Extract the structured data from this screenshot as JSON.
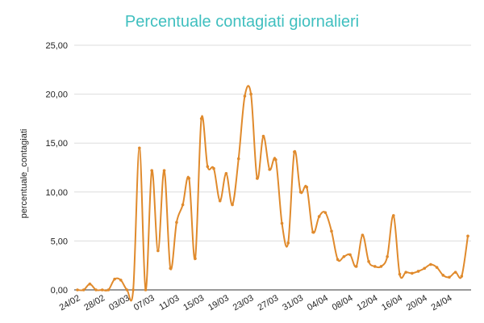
{
  "chart_data": {
    "type": "line",
    "title": "Percentuale contagiati giornalieri",
    "xlabel": "",
    "ylabel": "percentuale_contagiati",
    "ylim": [
      0,
      25
    ],
    "yticks": [
      "0,00",
      "5,00",
      "10,00",
      "15,00",
      "20,00",
      "25,00"
    ],
    "xtick_labels": [
      "24/02",
      "28/02",
      "03/03",
      "07/03",
      "11/03",
      "15/03",
      "19/03",
      "23/03",
      "27/03",
      "31/03",
      "04/04",
      "08/04",
      "12/04",
      "16/04",
      "20/04",
      "24/04"
    ],
    "grid": "horizontal",
    "legend": "none",
    "line_color": "#e08a2c",
    "grid_color": "#dddddd",
    "title_color": "#3fbfbf",
    "x": [
      "24/02",
      "25/02",
      "26/02",
      "27/02",
      "28/02",
      "29/02",
      "01/03",
      "02/03",
      "03/03",
      "04/03",
      "05/03",
      "06/03",
      "07/03",
      "08/03",
      "09/03",
      "10/03",
      "11/03",
      "12/03",
      "13/03",
      "14/03",
      "15/03",
      "16/03",
      "17/03",
      "18/03",
      "19/03",
      "20/03",
      "21/03",
      "22/03",
      "23/03",
      "24/03",
      "25/03",
      "26/03",
      "27/03",
      "28/03",
      "29/03",
      "30/03",
      "31/03",
      "01/04",
      "02/04",
      "03/04",
      "04/04",
      "05/04",
      "06/04",
      "07/04",
      "08/04",
      "09/04",
      "10/04",
      "11/04",
      "12/04",
      "13/04",
      "14/04",
      "15/04",
      "16/04",
      "17/04",
      "18/04",
      "19/04",
      "20/04",
      "21/04",
      "22/04",
      "23/04",
      "24/04",
      "25/04",
      "26/04",
      "27/04"
    ],
    "series": [
      {
        "values": [
          0.0,
          0.0,
          0.6,
          0.0,
          0.0,
          0.0,
          1.1,
          1.0,
          0.0,
          0.0,
          14.5,
          0.0,
          12.2,
          4.0,
          12.2,
          2.2,
          6.9,
          8.7,
          11.4,
          3.2,
          17.5,
          12.6,
          12.4,
          9.1,
          11.9,
          8.7,
          13.4,
          19.8,
          20.0,
          11.4,
          15.7,
          12.3,
          13.3,
          6.8,
          4.8,
          14.1,
          10.0,
          10.5,
          5.9,
          7.5,
          7.9,
          6.0,
          3.1,
          3.4,
          3.6,
          2.4,
          5.6,
          2.9,
          2.4,
          2.4,
          3.4,
          7.6,
          1.6,
          1.8,
          1.7,
          1.9,
          2.2,
          2.6,
          2.3,
          1.5,
          1.3,
          1.8,
          1.4,
          5.5
        ]
      }
    ]
  }
}
